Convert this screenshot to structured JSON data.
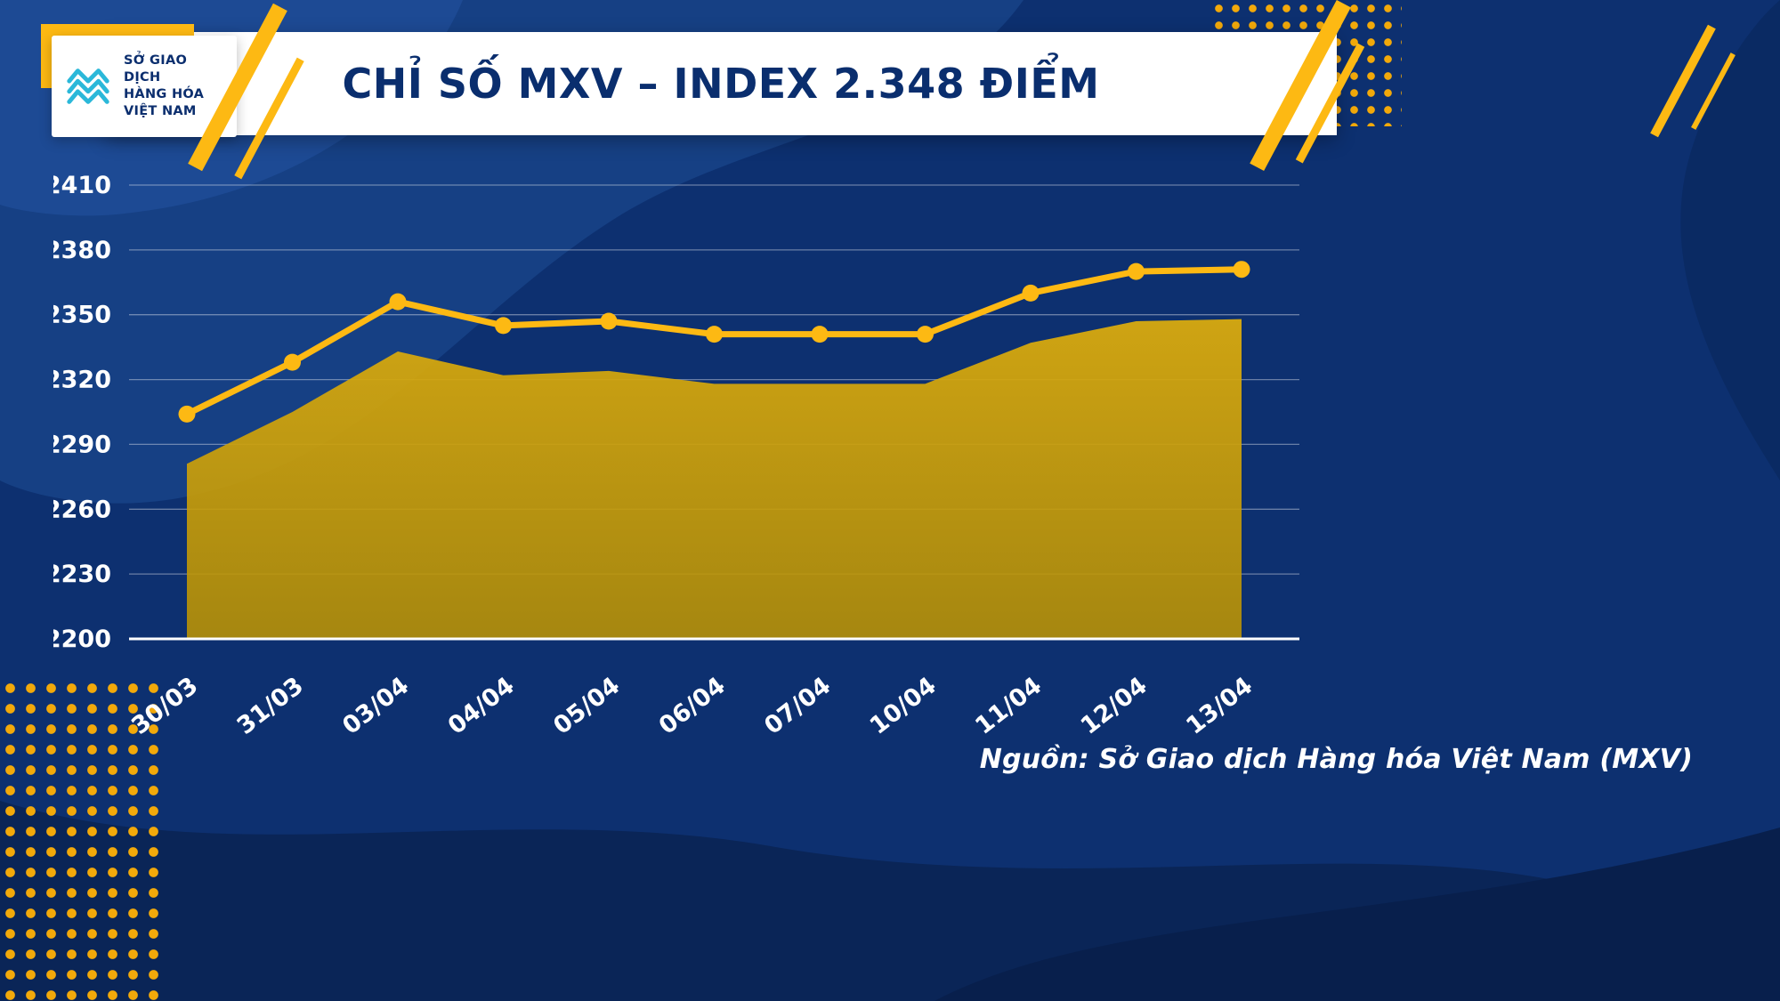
{
  "header": {
    "title": "CHỈ SỐ MXV – INDEX 2.348 ĐIỂM"
  },
  "logo": {
    "line1": "SỞ GIAO DỊCH",
    "line2": "HÀNG HÓA",
    "line3": "VIỆT NAM"
  },
  "source": {
    "text": "Nguồn: Sở Giao dịch Hàng hóa Việt Nam (MXV)"
  },
  "colors": {
    "background": "#0d3070",
    "line": "#fdb913",
    "marker": "#fdb913",
    "area_top": "#d9aa0e",
    "area_bottom": "#bb9303",
    "grid": "rgba(255,255,255,0.38)",
    "axis": "#ffffff",
    "tick_text": "#ffffff",
    "title_text": "#0a2e6e",
    "logo_mark": "#2bb8d9",
    "accent": "#fdb913"
  },
  "chart_data": {
    "type": "line",
    "title": "CHỈ SỐ MXV – INDEX 2.348 ĐIỂM",
    "categories": [
      "30/03",
      "31/03",
      "03/04",
      "04/04",
      "05/04",
      "06/04",
      "07/04",
      "10/04",
      "11/04",
      "12/04",
      "13/04"
    ],
    "series": [
      {
        "name": "MXV-Index",
        "values": [
          2281,
          2305,
          2333,
          2322,
          2324,
          2318,
          2318,
          2318,
          2337,
          2347,
          2348
        ]
      }
    ],
    "ylim": [
      2200,
      2410
    ],
    "yticks": [
      2410,
      2380,
      2350,
      2320,
      2290,
      2260,
      2230,
      2200
    ],
    "xlabel": "",
    "ylabel": "",
    "grid": true,
    "legend": "none",
    "line_offset_points": 23,
    "x_label_rotation": -38
  }
}
